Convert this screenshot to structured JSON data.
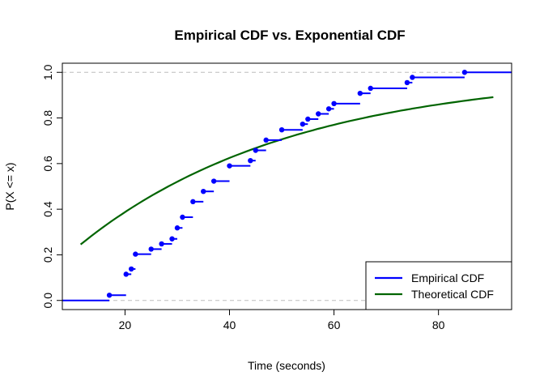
{
  "chart_data": {
    "type": "line",
    "title": "Empirical CDF vs. Exponential CDF",
    "xlabel": "Time (seconds)",
    "ylabel": "P(X <= x)",
    "xlim": [
      8,
      94
    ],
    "ylim": [
      -0.04,
      1.04
    ],
    "x_ticks": [
      20,
      40,
      60,
      80
    ],
    "y_ticks": [
      0.0,
      0.2,
      0.4,
      0.6,
      0.8,
      1.0
    ],
    "reference_lines_y": [
      0,
      1
    ],
    "legend_position": "bottom-right",
    "series": [
      {
        "name": "Empirical CDF",
        "kind": "step",
        "color": "#0000ff",
        "points": [
          {
            "x": 17.0,
            "y": 0.023
          },
          {
            "x": 20.2,
            "y": 0.115
          },
          {
            "x": 21.2,
            "y": 0.138
          },
          {
            "x": 22.0,
            "y": 0.203
          },
          {
            "x": 25.0,
            "y": 0.225
          },
          {
            "x": 27.0,
            "y": 0.248
          },
          {
            "x": 29.0,
            "y": 0.27
          },
          {
            "x": 30.0,
            "y": 0.318
          },
          {
            "x": 31.0,
            "y": 0.365
          },
          {
            "x": 33.0,
            "y": 0.433
          },
          {
            "x": 35.0,
            "y": 0.478
          },
          {
            "x": 37.0,
            "y": 0.523
          },
          {
            "x": 40.0,
            "y": 0.59
          },
          {
            "x": 44.0,
            "y": 0.613
          },
          {
            "x": 45.0,
            "y": 0.658
          },
          {
            "x": 47.0,
            "y": 0.703
          },
          {
            "x": 50.0,
            "y": 0.748
          },
          {
            "x": 54.0,
            "y": 0.773
          },
          {
            "x": 55.0,
            "y": 0.795
          },
          {
            "x": 57.0,
            "y": 0.818
          },
          {
            "x": 59.0,
            "y": 0.84
          },
          {
            "x": 60.0,
            "y": 0.863
          },
          {
            "x": 65.0,
            "y": 0.908
          },
          {
            "x": 67.0,
            "y": 0.93
          },
          {
            "x": 74.0,
            "y": 0.955
          },
          {
            "x": 75.0,
            "y": 0.978
          },
          {
            "x": 85.0,
            "y": 1.0
          }
        ]
      },
      {
        "name": "Theoretical CDF",
        "kind": "curve",
        "color": "#006400",
        "x_range": [
          11.5,
          90.5
        ],
        "rate": 0.0245
      }
    ]
  }
}
